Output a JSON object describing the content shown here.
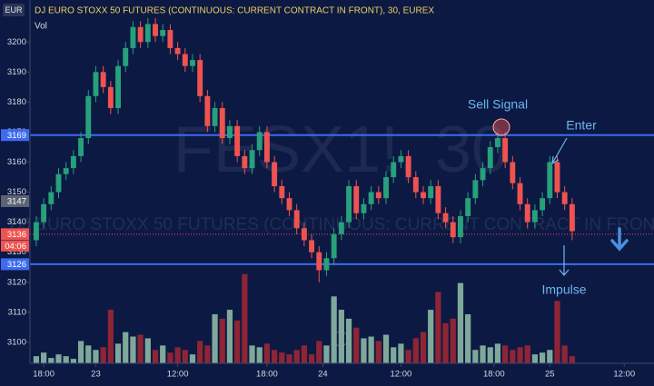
{
  "chart_data": {
    "type": "candlestick",
    "title": "DJ EURO STOXX 50 FUTURES (CONTINUOUS: CURRENT CONTRACT IN FRONT), 30, EUREX",
    "subtitle": "Vol",
    "currency": "EUR",
    "watermark": "FESX1!, 30",
    "watermark_subtitle": "DJ EURO STOXX 50 FUTURES (CONTINUOUS: CURRENT CONTRACT IN FRONT)",
    "up_color": "#26a17b",
    "down_color": "#ef5350",
    "volume_up_color": "#7fa89a",
    "volume_down_color": "#8e2535",
    "open": [
      3134,
      3140,
      3146,
      3150,
      3156,
      3158,
      3162,
      3168,
      3182,
      3190,
      3185,
      3178,
      3192,
      3198,
      3205,
      3200,
      3206,
      3202,
      3204,
      3198,
      3196,
      3192,
      3194,
      3182,
      3172,
      3178,
      3168,
      3172,
      3162,
      3158,
      3164,
      3170,
      3160,
      3152,
      3148,
      3144,
      3138,
      3134,
      3130,
      3124,
      3128,
      3136,
      3140,
      3152,
      3143,
      3146,
      3150,
      3148,
      3155,
      3160,
      3162,
      3155,
      3150,
      3148,
      3152,
      3143,
      3140,
      3135,
      3142,
      3148,
      3154,
      3158,
      3165,
      3168,
      3160,
      3153,
      3146,
      3140,
      3144,
      3148,
      3160,
      3150,
      3146
    ],
    "high": [
      3142,
      3148,
      3152,
      3158,
      3160,
      3164,
      3170,
      3184,
      3192,
      3192,
      3187,
      3194,
      3200,
      3207,
      3207,
      3208,
      3208,
      3206,
      3206,
      3200,
      3198,
      3196,
      3196,
      3184,
      3180,
      3180,
      3174,
      3174,
      3164,
      3166,
      3172,
      3172,
      3162,
      3154,
      3150,
      3146,
      3140,
      3136,
      3132,
      3130,
      3138,
      3142,
      3154,
      3154,
      3148,
      3152,
      3152,
      3157,
      3162,
      3164,
      3164,
      3157,
      3152,
      3154,
      3154,
      3145,
      3142,
      3144,
      3150,
      3156,
      3160,
      3167,
      3170,
      3170,
      3162,
      3155,
      3148,
      3146,
      3150,
      3162,
      3162,
      3152,
      3148
    ],
    "low": [
      3132,
      3138,
      3144,
      3148,
      3154,
      3156,
      3160,
      3166,
      3180,
      3183,
      3176,
      3176,
      3190,
      3196,
      3198,
      3198,
      3200,
      3200,
      3196,
      3194,
      3190,
      3190,
      3180,
      3170,
      3170,
      3166,
      3166,
      3160,
      3156,
      3156,
      3162,
      3158,
      3150,
      3146,
      3142,
      3136,
      3132,
      3128,
      3120,
      3122,
      3126,
      3134,
      3138,
      3141,
      3141,
      3144,
      3146,
      3146,
      3153,
      3158,
      3153,
      3148,
      3146,
      3146,
      3141,
      3138,
      3133,
      3133,
      3140,
      3146,
      3152,
      3156,
      3163,
      3158,
      3151,
      3144,
      3138,
      3138,
      3142,
      3146,
      3148,
      3144,
      3134
    ],
    "close": [
      3140,
      3146,
      3150,
      3156,
      3158,
      3162,
      3168,
      3182,
      3190,
      3185,
      3178,
      3192,
      3198,
      3205,
      3200,
      3206,
      3202,
      3204,
      3198,
      3196,
      3192,
      3194,
      3182,
      3172,
      3178,
      3168,
      3172,
      3162,
      3158,
      3164,
      3170,
      3160,
      3152,
      3148,
      3144,
      3138,
      3134,
      3130,
      3124,
      3128,
      3136,
      3140,
      3152,
      3143,
      3146,
      3150,
      3148,
      3155,
      3160,
      3162,
      3155,
      3150,
      3148,
      3152,
      3143,
      3140,
      3135,
      3142,
      3148,
      3154,
      3158,
      3165,
      3168,
      3160,
      3153,
      3146,
      3140,
      3144,
      3148,
      3160,
      3150,
      3146,
      3137
    ],
    "volume": [
      8,
      12,
      6,
      10,
      8,
      5,
      25,
      20,
      15,
      18,
      60,
      22,
      35,
      30,
      32,
      28,
      15,
      20,
      12,
      18,
      15,
      10,
      25,
      20,
      55,
      50,
      60,
      48,
      100,
      20,
      18,
      22,
      15,
      12,
      10,
      15,
      20,
      10,
      25,
      20,
      75,
      60,
      50,
      40,
      28,
      30,
      25,
      32,
      18,
      22,
      15,
      28,
      35,
      60,
      80,
      45,
      50,
      90,
      55,
      15,
      20,
      18,
      22,
      20,
      15,
      18,
      20,
      10,
      12,
      15,
      70,
      20,
      8
    ],
    "volume_lim": [
      0,
      112
    ],
    "xlim": [
      -0.6,
      83
    ],
    "xticks": [
      {
        "value": 1,
        "label": "18:00"
      },
      {
        "value": 8,
        "label": "23"
      },
      {
        "value": 19,
        "label": "12:00"
      },
      {
        "value": 31,
        "label": "18:00"
      },
      {
        "value": 38.5,
        "label": "24"
      },
      {
        "value": 49,
        "label": "12:00"
      },
      {
        "value": 61.5,
        "label": "18:00"
      },
      {
        "value": 69,
        "label": "25"
      },
      {
        "value": 79,
        "label": "12:00"
      }
    ],
    "ylim": [
      3093,
      3214
    ],
    "yticks": [
      3100,
      3110,
      3120,
      3130,
      3140,
      3150,
      3160,
      3170,
      3180,
      3190,
      3200
    ],
    "levels": [
      {
        "value": 3169,
        "color": "#3d6bf0",
        "style": "solid"
      },
      {
        "value": 3126,
        "color": "#3d6bf0",
        "style": "solid"
      },
      {
        "value": 3136,
        "color": "#ef5350",
        "style": "dotted"
      }
    ],
    "price_tags": [
      {
        "value": 3169,
        "color": "#3d6bf0"
      },
      {
        "value": 3147,
        "color": "#5b6470"
      },
      {
        "value": 3136,
        "color": "#ef5350"
      },
      {
        "value": 3126,
        "color": "#3d6bf0"
      }
    ],
    "countdown": "04:06",
    "annotations": {
      "sell_signal": "Sell Signal",
      "enter": "Enter",
      "impulse": "Impulse"
    }
  }
}
